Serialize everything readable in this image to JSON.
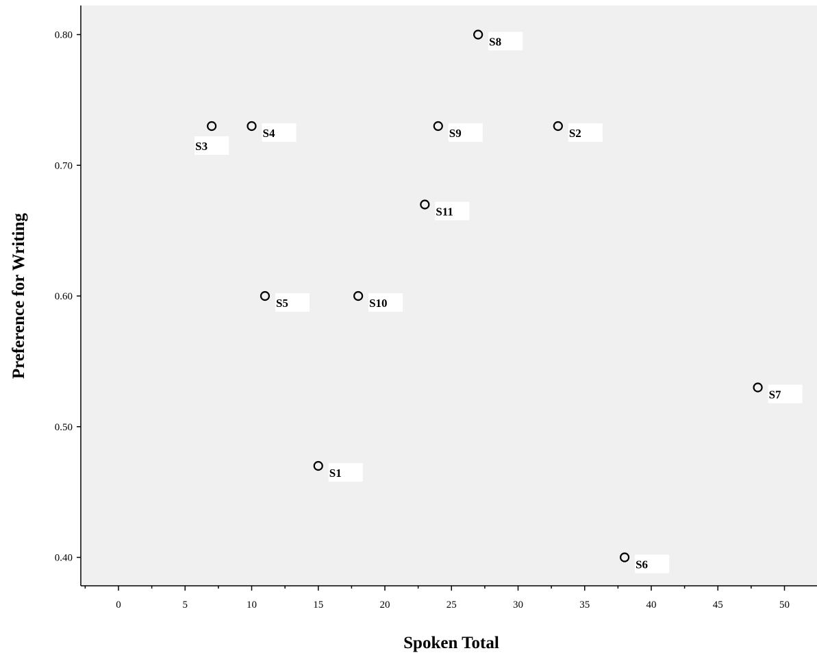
{
  "chart_data": {
    "type": "scatter",
    "title": "",
    "xlabel": "Spoken Total",
    "ylabel": "Preference for Writing",
    "xlim": [
      -2.5,
      52.5
    ],
    "ylim": [
      0.38,
      0.825
    ],
    "xticks": [
      0,
      5,
      10,
      15,
      20,
      25,
      30,
      35,
      40,
      45,
      50
    ],
    "yticks": [
      0.4,
      0.5,
      0.6,
      0.7,
      0.8
    ],
    "ytick_labels": [
      "0.40",
      "0.50",
      "0.60",
      "0.70",
      "0.80"
    ],
    "grid": false,
    "legend": "none",
    "colors": {
      "plot_background": "#f0f0f0",
      "marker_edge": "#000000",
      "label_box": "#ffffff"
    },
    "points": [
      {
        "label": "S1",
        "x": 15,
        "y": 0.47,
        "label_pos": "below-right"
      },
      {
        "label": "S2",
        "x": 33,
        "y": 0.73,
        "label_pos": "below-right"
      },
      {
        "label": "S3",
        "x": 7,
        "y": 0.73,
        "label_pos": "below-left"
      },
      {
        "label": "S4",
        "x": 10,
        "y": 0.73,
        "label_pos": "below-right"
      },
      {
        "label": "S5",
        "x": 11,
        "y": 0.6,
        "label_pos": "below-right"
      },
      {
        "label": "S6",
        "x": 38,
        "y": 0.4,
        "label_pos": "below-right"
      },
      {
        "label": "S7",
        "x": 48,
        "y": 0.53,
        "label_pos": "below-right"
      },
      {
        "label": "S8",
        "x": 27,
        "y": 0.8,
        "label_pos": "below-right"
      },
      {
        "label": "S9",
        "x": 24,
        "y": 0.73,
        "label_pos": "below-right"
      },
      {
        "label": "S10",
        "x": 18,
        "y": 0.6,
        "label_pos": "below-right"
      },
      {
        "label": "S11",
        "x": 23,
        "y": 0.67,
        "label_pos": "below-right"
      }
    ]
  }
}
